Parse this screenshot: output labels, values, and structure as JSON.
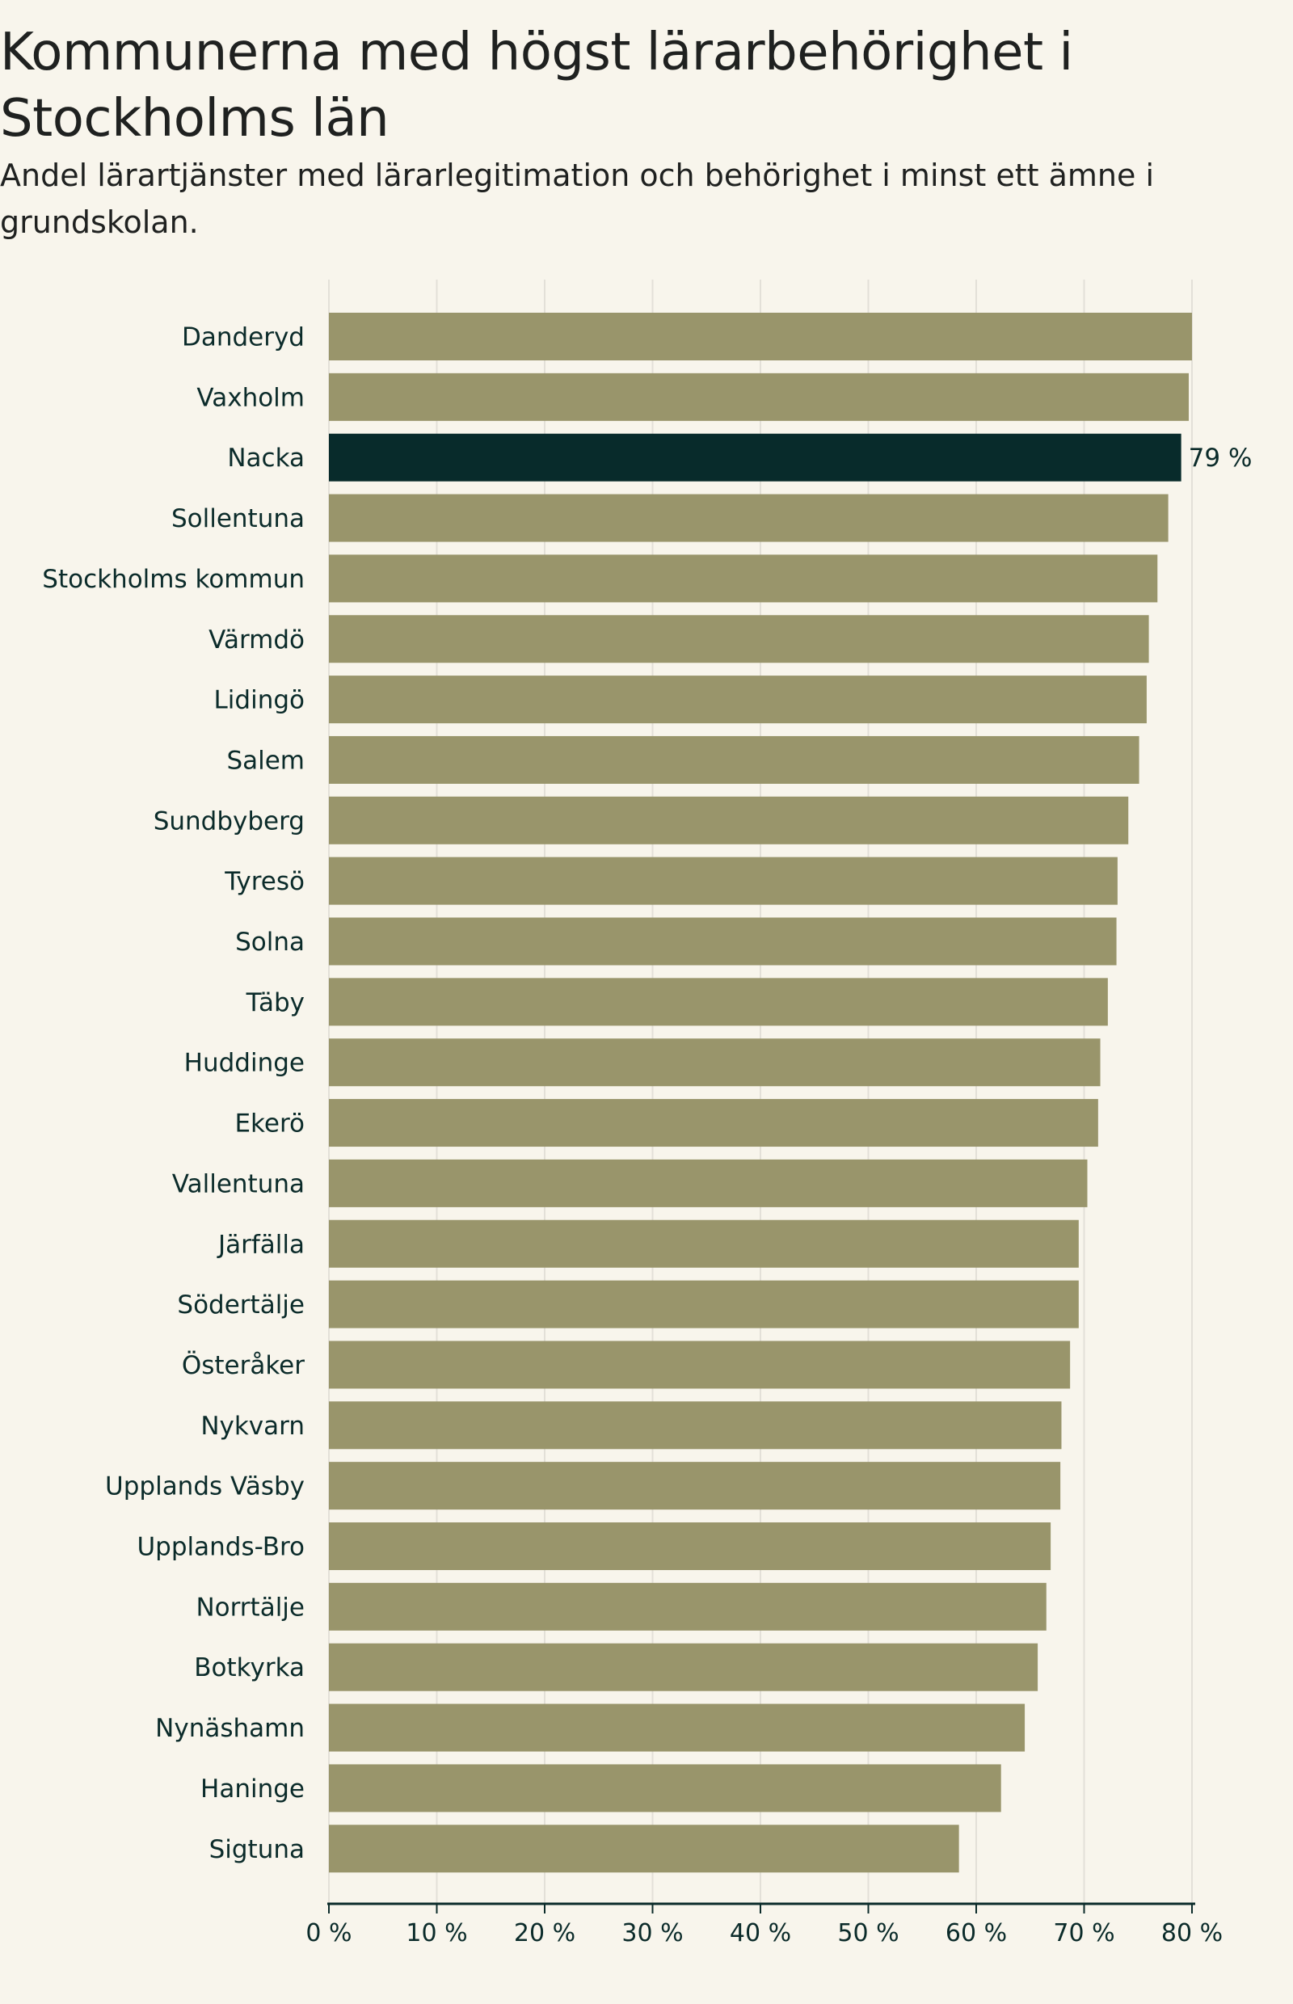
{
  "header": {
    "title": "Kommunerna med högst lärarbehörighet i Stockholms län",
    "subtitle": "Andel lärartjänster med lärarlegitimation och behörighet i minst ett ämne i grundskolan."
  },
  "colors": {
    "background": "#f8f5ec",
    "bar": "#99956b",
    "highlight": "#082b2b",
    "text": "#1f2120",
    "grid": "#e3e0d8",
    "axis": "#0b2b2a"
  },
  "chart_data": {
    "type": "bar",
    "orientation": "horizontal",
    "title": "Kommunerna med högst lärarbehörighet i Stockholms län",
    "subtitle": "Andel lärartjänster med lärarlegitimation och behörighet i minst ett ämne i grundskolan.",
    "xlabel": "",
    "ylabel": "",
    "xlim": [
      0,
      80
    ],
    "grid": true,
    "unit": "%",
    "categories": [
      "Danderyd",
      "Vaxholm",
      "Nacka",
      "Sollentuna",
      "Stockholms kommun",
      "Värmdö",
      "Lidingö",
      "Salem",
      "Sundbyberg",
      "Tyresö",
      "Solna",
      "Täby",
      "Huddinge",
      "Ekerö",
      "Vallentuna",
      "Järfälla",
      "Södertälje",
      "Österåker",
      "Nykvarn",
      "Upplands Väsby",
      "Upplands-Bro",
      "Norrtälje",
      "Botkyrka",
      "Nynäshamn",
      "Haninge",
      "Sigtuna"
    ],
    "values": [
      80.0,
      79.7,
      79.0,
      77.8,
      76.8,
      76.0,
      75.8,
      75.1,
      74.1,
      73.1,
      73.0,
      72.2,
      71.5,
      71.3,
      70.3,
      69.5,
      69.5,
      68.7,
      67.9,
      67.8,
      66.9,
      66.5,
      65.7,
      64.5,
      62.3,
      58.4
    ],
    "highlight": "Nacka",
    "data_labels": [
      {
        "category": "Nacka",
        "text": "79 %"
      }
    ],
    "x_ticks": [
      0,
      10,
      20,
      30,
      40,
      50,
      60,
      70,
      80
    ],
    "x_tick_labels": [
      "0 %",
      "10 %",
      "20 %",
      "30 %",
      "40 %",
      "50 %",
      "60 %",
      "70 %",
      "80 %"
    ]
  }
}
